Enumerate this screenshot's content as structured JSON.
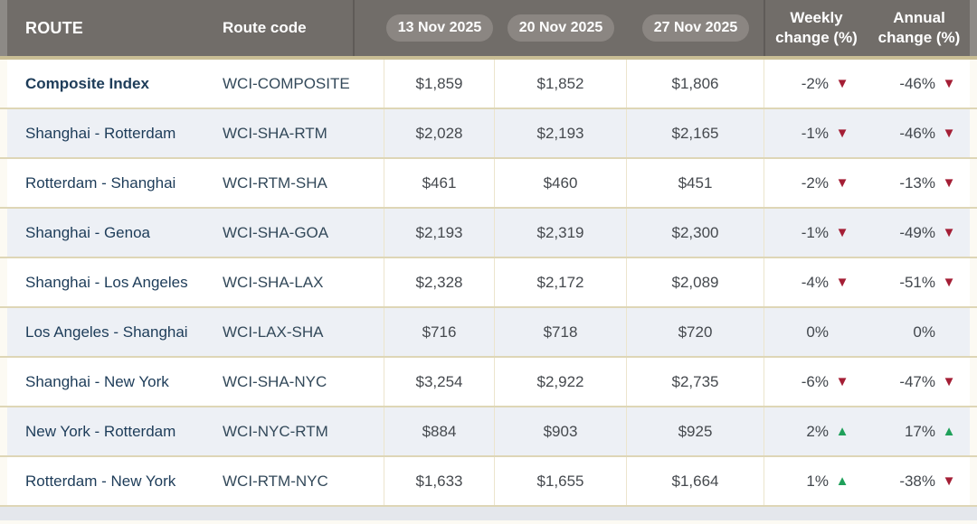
{
  "header": {
    "route": "ROUTE",
    "route_code": "Route code",
    "dates": [
      "13 Nov 2025",
      "20 Nov 2025",
      "27 Nov 2025"
    ],
    "weekly_line1": "Weekly",
    "weekly_line2": "change (%)",
    "annual_line1": "Annual",
    "annual_line2": "change (%)"
  },
  "rows": [
    {
      "route": "Composite Index",
      "code": "WCI-COMPOSITE",
      "bold": true,
      "prices": [
        "$1,859",
        "$1,852",
        "$1,806"
      ],
      "weekly": {
        "value": "-2%",
        "dir": "down"
      },
      "annual": {
        "value": "-46%",
        "dir": "down"
      }
    },
    {
      "route": "Shanghai - Rotterdam",
      "code": "WCI-SHA-RTM",
      "bold": false,
      "prices": [
        "$2,028",
        "$2,193",
        "$2,165"
      ],
      "weekly": {
        "value": "-1%",
        "dir": "down"
      },
      "annual": {
        "value": "-46%",
        "dir": "down"
      }
    },
    {
      "route": "Rotterdam - Shanghai",
      "code": "WCI-RTM-SHA",
      "bold": false,
      "prices": [
        "$461",
        "$460",
        "$451"
      ],
      "weekly": {
        "value": "-2%",
        "dir": "down"
      },
      "annual": {
        "value": "-13%",
        "dir": "down"
      }
    },
    {
      "route": "Shanghai - Genoa",
      "code": "WCI-SHA-GOA",
      "bold": false,
      "prices": [
        "$2,193",
        "$2,319",
        "$2,300"
      ],
      "weekly": {
        "value": "-1%",
        "dir": "down"
      },
      "annual": {
        "value": "-49%",
        "dir": "down"
      }
    },
    {
      "route": "Shanghai - Los Angeles",
      "code": "WCI-SHA-LAX",
      "bold": false,
      "prices": [
        "$2,328",
        "$2,172",
        "$2,089"
      ],
      "weekly": {
        "value": "-4%",
        "dir": "down"
      },
      "annual": {
        "value": "-51%",
        "dir": "down"
      }
    },
    {
      "route": "Los Angeles - Shanghai",
      "code": "WCI-LAX-SHA",
      "bold": false,
      "prices": [
        "$716",
        "$718",
        "$720"
      ],
      "weekly": {
        "value": "0%",
        "dir": "none"
      },
      "annual": {
        "value": "0%",
        "dir": "none"
      }
    },
    {
      "route": "Shanghai - New York",
      "code": "WCI-SHA-NYC",
      "bold": false,
      "prices": [
        "$3,254",
        "$2,922",
        "$2,735"
      ],
      "weekly": {
        "value": "-6%",
        "dir": "down"
      },
      "annual": {
        "value": "-47%",
        "dir": "down"
      }
    },
    {
      "route": "New York - Rotterdam",
      "code": "WCI-NYC-RTM",
      "bold": false,
      "prices": [
        "$884",
        "$903",
        "$925"
      ],
      "weekly": {
        "value": "2%",
        "dir": "up"
      },
      "annual": {
        "value": "17%",
        "dir": "up"
      }
    },
    {
      "route": "Rotterdam - New York",
      "code": "WCI-RTM-NYC",
      "bold": false,
      "prices": [
        "$1,633",
        "$1,655",
        "$1,664"
      ],
      "weekly": {
        "value": "1%",
        "dir": "up"
      },
      "annual": {
        "value": "-38%",
        "dir": "down"
      }
    }
  ],
  "icons": {
    "down": "▼",
    "up": "▲"
  },
  "colors": {
    "header-bg": "#716d69",
    "header-margin": "#8d8a86",
    "pill-bg": "#8b8682",
    "header-border": "#c9be95",
    "row-border": "#ded6b6",
    "col-sep": "#ece5cd",
    "page-bg": "#fcfaf3",
    "alt-row": "#edf0f5",
    "bottom-strip": "#e4e7ec",
    "navy": "#1d3c59",
    "down": "#a41e35",
    "up": "#1fa05a"
  }
}
